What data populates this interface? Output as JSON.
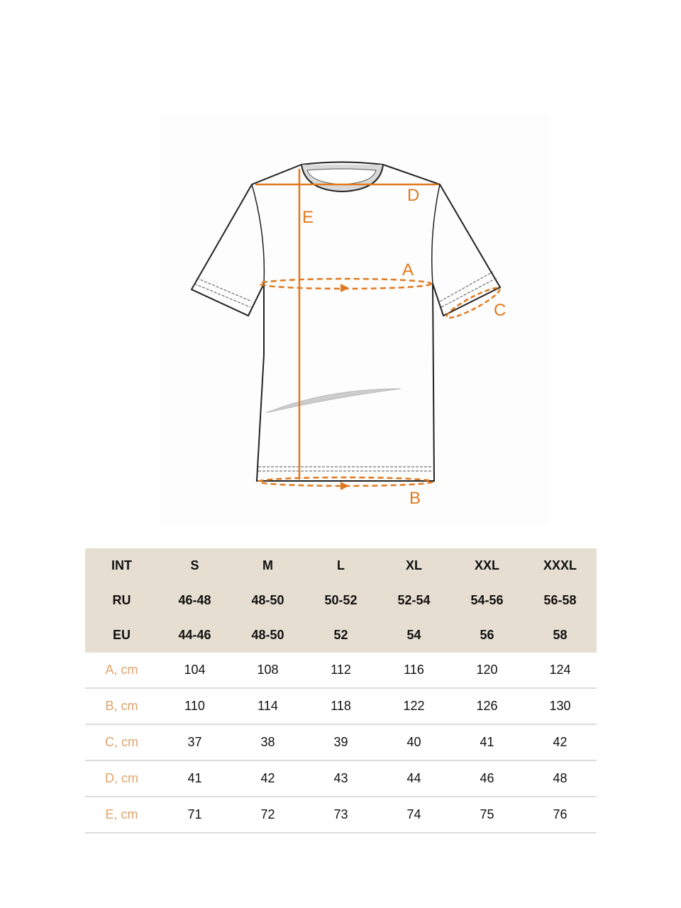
{
  "diagram": {
    "labels": {
      "A": "A",
      "B": "B",
      "C": "C",
      "D": "D",
      "E": "E"
    },
    "accent_color": "#e07a1f"
  },
  "size_table": {
    "header_rows": [
      {
        "label": "INT",
        "values": [
          "S",
          "M",
          "L",
          "XL",
          "XXL",
          "XXXL"
        ]
      },
      {
        "label": "RU",
        "values": [
          "46-48",
          "48-50",
          "50-52",
          "52-54",
          "54-56",
          "56-58"
        ]
      },
      {
        "label": "EU",
        "values": [
          "44-46",
          "48-50",
          "52",
          "54",
          "56",
          "58"
        ]
      }
    ],
    "measurement_rows": [
      {
        "label": "A, cm",
        "values": [
          "104",
          "108",
          "112",
          "116",
          "120",
          "124"
        ]
      },
      {
        "label": "B, cm",
        "values": [
          "110",
          "114",
          "118",
          "122",
          "126",
          "130"
        ]
      },
      {
        "label": "C, cm",
        "values": [
          "37",
          "38",
          "39",
          "40",
          "41",
          "42"
        ]
      },
      {
        "label": "D, cm",
        "values": [
          "41",
          "42",
          "43",
          "44",
          "46",
          "48"
        ]
      },
      {
        "label": "E, cm",
        "values": [
          "71",
          "72",
          "73",
          "74",
          "75",
          "76"
        ]
      }
    ],
    "header_bg": "#e5ded1",
    "row_label_color": "#e0a36b"
  }
}
